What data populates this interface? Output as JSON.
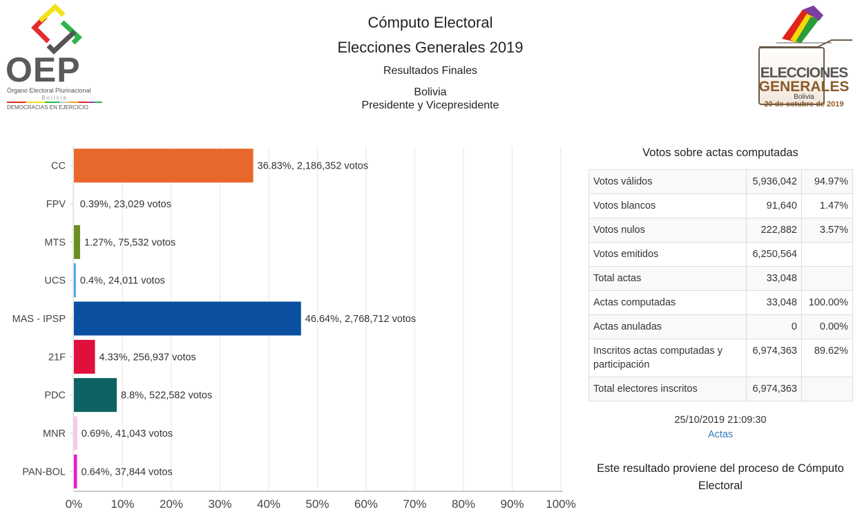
{
  "header": {
    "title": "Cómputo Electoral",
    "subtitle": "Elecciones Generales 2019",
    "results_label": "Resultados Finales",
    "region": "Bolivia",
    "election_type": "Presidente y Vicepresidente"
  },
  "logos": {
    "left": {
      "acronym": "OEP",
      "line1": "Órgano Electoral Plurinacional",
      "line2": "Bolivia",
      "line3": "DEMOCRACIAS EN EJERCICIO"
    },
    "right": {
      "line1": "ELECCIONES",
      "line2": "GENERALES",
      "line3": "Bolivia",
      "line4": "20 de octubre de 2019"
    }
  },
  "chart_data": {
    "type": "bar",
    "orientation": "horizontal",
    "categories": [
      "CC",
      "FPV",
      "MTS",
      "UCS",
      "MAS - IPSP",
      "21F",
      "PDC",
      "MNR",
      "PAN-BOL"
    ],
    "values": [
      36.83,
      0.39,
      1.27,
      0.4,
      46.64,
      4.33,
      8.8,
      0.69,
      0.64
    ],
    "votes": [
      2186352,
      23029,
      75532,
      24011,
      2768712,
      256937,
      522582,
      41043,
      37844
    ],
    "data_labels": [
      "36.83%,  2,186,352 votos",
      "0.39%,  23,029 votos",
      "1.27%,  75,532 votos",
      "0.4%,  24,011 votos",
      "46.64%,  2,768,712 votos",
      "4.33%,  256,937 votos",
      "8.8%,  522,582 votos",
      "0.69%,  41,043 votos",
      "0.64%,  37,844 votos"
    ],
    "colors": [
      "#e8672a",
      "#ffffff",
      "#6b8e23",
      "#3fa9dd",
      "#0a4fa0",
      "#e0103c",
      "#0e6262",
      "#f5c6f0",
      "#e619d0"
    ],
    "xlim": [
      0,
      100
    ],
    "xticks": [
      "0%",
      "10%",
      "20%",
      "30%",
      "40%",
      "50%",
      "60%",
      "70%",
      "80%",
      "90%",
      "100%"
    ],
    "grid": true,
    "xlabel": "",
    "ylabel": ""
  },
  "summary": {
    "title": "Votos sobre actas computadas",
    "rows": [
      {
        "label": "Votos válidos",
        "value": "5,936,042",
        "pct": "94.97%"
      },
      {
        "label": "Votos blancos",
        "value": "91,640",
        "pct": "1.47%"
      },
      {
        "label": "Votos nulos",
        "value": "222,882",
        "pct": "3.57%"
      },
      {
        "label": "Votos emitidos",
        "value": "6,250,564",
        "pct": ""
      },
      {
        "label": "Total actas",
        "value": "33,048",
        "pct": ""
      },
      {
        "label": "Actas computadas",
        "value": "33,048",
        "pct": "100.00%"
      },
      {
        "label": "Actas anuladas",
        "value": "0",
        "pct": "0.00%"
      },
      {
        "label": "Inscritos actas computadas y participación",
        "value": "6,974,363",
        "pct": "89.62%"
      },
      {
        "label": "Total electores inscritos",
        "value": "6,974,363",
        "pct": ""
      }
    ],
    "timestamp": "25/10/2019 21:09:30",
    "actas_link": "Actas",
    "note": "Este resultado proviene del proceso de Cómputo Electoral"
  }
}
